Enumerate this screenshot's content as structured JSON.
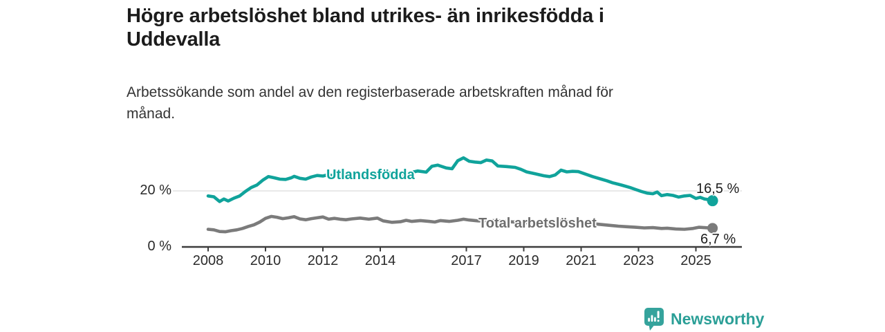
{
  "header": {
    "title_lines": [
      "Högre arbetslöshet bland utrikes- än inrikesfödda i",
      "Uddevalla"
    ],
    "subtitle_lines": [
      "Arbetssökande som andel av den registerbaserade arbetskraften månad för",
      "månad."
    ]
  },
  "branding": {
    "name": "Newsworthy",
    "logo_icon": "bar-chart-speech-bubble-icon",
    "color": "#2b9f97"
  },
  "colors": {
    "accent_teal": "#10a39b",
    "series_gray": "#7b7b7b",
    "axis": "#3c3c3c",
    "grid": "#dcdcdc",
    "label_text": "#1c1c1c",
    "background": "#ffffff"
  },
  "chart_data": {
    "type": "line",
    "title": "Högre arbetslöshet bland utrikes- än inrikesfödda i Uddevalla",
    "subtitle": "Arbetssökande som andel av den registerbaserade arbetskraften månad för månad.",
    "unit": "%",
    "grid": "horizontal-only",
    "legend_position": "inline-labels",
    "x_axis": {
      "min": 2008,
      "max": 2025.6,
      "ticks": [
        2008,
        2010,
        2012,
        2014,
        2017,
        2019,
        2021,
        2023,
        2025
      ]
    },
    "y_axis": {
      "min": 0,
      "max": 35,
      "ticks": [
        {
          "value": 20,
          "label": "20 %"
        },
        {
          "value": 0,
          "label": "0 %"
        }
      ],
      "grid_values": [
        20
      ]
    },
    "series": [
      {
        "name": "Utlandsfödda",
        "color": "#10a39b",
        "end_label": "16,5 %",
        "end_value": 16.5,
        "points": [
          [
            2008.0,
            18.2
          ],
          [
            2008.2,
            17.9
          ],
          [
            2008.4,
            16.2
          ],
          [
            2008.55,
            17.1
          ],
          [
            2008.7,
            16.4
          ],
          [
            2008.9,
            17.4
          ],
          [
            2009.1,
            18.2
          ],
          [
            2009.3,
            19.8
          ],
          [
            2009.5,
            21.2
          ],
          [
            2009.7,
            22.1
          ],
          [
            2009.9,
            23.8
          ],
          [
            2010.1,
            25.1
          ],
          [
            2010.3,
            24.7
          ],
          [
            2010.5,
            24.2
          ],
          [
            2010.7,
            24.1
          ],
          [
            2010.9,
            24.7
          ],
          [
            2011.0,
            25.2
          ],
          [
            2011.2,
            24.5
          ],
          [
            2011.4,
            24.2
          ],
          [
            2011.6,
            25.0
          ],
          [
            2011.8,
            25.5
          ],
          [
            2012.0,
            25.3
          ],
          [
            2012.2,
            25.8
          ],
          [
            2012.4,
            25.2
          ],
          [
            2012.6,
            26.0
          ],
          [
            2012.8,
            25.5
          ],
          [
            2013.0,
            25.8
          ],
          [
            2013.3,
            25.3
          ],
          [
            2013.6,
            25.9
          ],
          [
            2013.9,
            26.2
          ],
          [
            2014.2,
            26.5
          ],
          [
            2014.5,
            26.1
          ],
          [
            2014.8,
            25.8
          ],
          [
            2015.0,
            26.4
          ],
          [
            2015.3,
            27.1
          ],
          [
            2015.6,
            26.7
          ],
          [
            2015.8,
            28.8
          ],
          [
            2016.0,
            29.2
          ],
          [
            2016.3,
            28.2
          ],
          [
            2016.5,
            27.9
          ],
          [
            2016.7,
            30.8
          ],
          [
            2016.9,
            31.8
          ],
          [
            2017.1,
            30.6
          ],
          [
            2017.3,
            30.3
          ],
          [
            2017.5,
            30.1
          ],
          [
            2017.7,
            31.0
          ],
          [
            2017.9,
            30.7
          ],
          [
            2018.1,
            28.9
          ],
          [
            2018.4,
            28.7
          ],
          [
            2018.7,
            28.4
          ],
          [
            2018.9,
            27.7
          ],
          [
            2019.1,
            26.8
          ],
          [
            2019.4,
            26.1
          ],
          [
            2019.7,
            25.4
          ],
          [
            2019.9,
            25.1
          ],
          [
            2020.1,
            25.7
          ],
          [
            2020.3,
            27.4
          ],
          [
            2020.5,
            26.8
          ],
          [
            2020.7,
            27.0
          ],
          [
            2020.9,
            26.9
          ],
          [
            2021.1,
            26.2
          ],
          [
            2021.4,
            25.1
          ],
          [
            2021.7,
            24.2
          ],
          [
            2021.9,
            23.6
          ],
          [
            2022.1,
            22.9
          ],
          [
            2022.4,
            22.1
          ],
          [
            2022.7,
            21.2
          ],
          [
            2022.9,
            20.5
          ],
          [
            2023.1,
            19.8
          ],
          [
            2023.3,
            19.2
          ],
          [
            2023.5,
            19.0
          ],
          [
            2023.65,
            19.6
          ],
          [
            2023.8,
            18.3
          ],
          [
            2024.0,
            18.7
          ],
          [
            2024.2,
            18.4
          ],
          [
            2024.4,
            17.8
          ],
          [
            2024.6,
            18.2
          ],
          [
            2024.8,
            18.4
          ],
          [
            2025.0,
            17.3
          ],
          [
            2025.15,
            17.7
          ],
          [
            2025.3,
            17.1
          ],
          [
            2025.45,
            16.9
          ],
          [
            2025.58,
            16.5
          ]
        ]
      },
      {
        "name": "Total arbetslöshet",
        "color": "#7b7b7b",
        "end_label": "6,7 %",
        "end_value": 6.7,
        "points": [
          [
            2008.0,
            6.3
          ],
          [
            2008.2,
            6.1
          ],
          [
            2008.4,
            5.5
          ],
          [
            2008.6,
            5.4
          ],
          [
            2008.8,
            5.8
          ],
          [
            2009.0,
            6.1
          ],
          [
            2009.2,
            6.6
          ],
          [
            2009.4,
            7.3
          ],
          [
            2009.6,
            7.9
          ],
          [
            2009.8,
            8.9
          ],
          [
            2010.0,
            10.2
          ],
          [
            2010.2,
            10.9
          ],
          [
            2010.4,
            10.6
          ],
          [
            2010.6,
            10.1
          ],
          [
            2010.8,
            10.4
          ],
          [
            2011.0,
            10.8
          ],
          [
            2011.2,
            10.0
          ],
          [
            2011.4,
            9.7
          ],
          [
            2011.6,
            10.1
          ],
          [
            2011.8,
            10.4
          ],
          [
            2012.0,
            10.7
          ],
          [
            2012.2,
            9.9
          ],
          [
            2012.4,
            10.2
          ],
          [
            2012.6,
            9.9
          ],
          [
            2012.8,
            9.7
          ],
          [
            2013.0,
            10.0
          ],
          [
            2013.3,
            10.3
          ],
          [
            2013.6,
            9.9
          ],
          [
            2013.9,
            10.3
          ],
          [
            2014.1,
            9.3
          ],
          [
            2014.4,
            8.8
          ],
          [
            2014.7,
            9.0
          ],
          [
            2014.9,
            9.5
          ],
          [
            2015.1,
            9.1
          ],
          [
            2015.4,
            9.4
          ],
          [
            2015.7,
            9.1
          ],
          [
            2015.9,
            8.9
          ],
          [
            2016.1,
            9.4
          ],
          [
            2016.4,
            9.1
          ],
          [
            2016.7,
            9.5
          ],
          [
            2016.9,
            9.9
          ],
          [
            2017.1,
            9.6
          ],
          [
            2017.4,
            9.3
          ],
          [
            2017.7,
            9.2
          ],
          [
            2018.0,
            9.4
          ],
          [
            2018.5,
            9.0
          ],
          [
            2019.0,
            8.7
          ],
          [
            2019.5,
            8.4
          ],
          [
            2020.0,
            8.6
          ],
          [
            2020.3,
            9.2
          ],
          [
            2020.6,
            8.9
          ],
          [
            2021.0,
            8.7
          ],
          [
            2021.5,
            8.2
          ],
          [
            2022.0,
            7.7
          ],
          [
            2022.3,
            7.4
          ],
          [
            2022.6,
            7.2
          ],
          [
            2022.9,
            7.0
          ],
          [
            2023.2,
            6.8
          ],
          [
            2023.5,
            6.9
          ],
          [
            2023.8,
            6.6
          ],
          [
            2024.0,
            6.7
          ],
          [
            2024.3,
            6.4
          ],
          [
            2024.6,
            6.3
          ],
          [
            2024.9,
            6.6
          ],
          [
            2025.1,
            7.0
          ],
          [
            2025.3,
            6.9
          ],
          [
            2025.58,
            6.7
          ]
        ]
      }
    ]
  }
}
